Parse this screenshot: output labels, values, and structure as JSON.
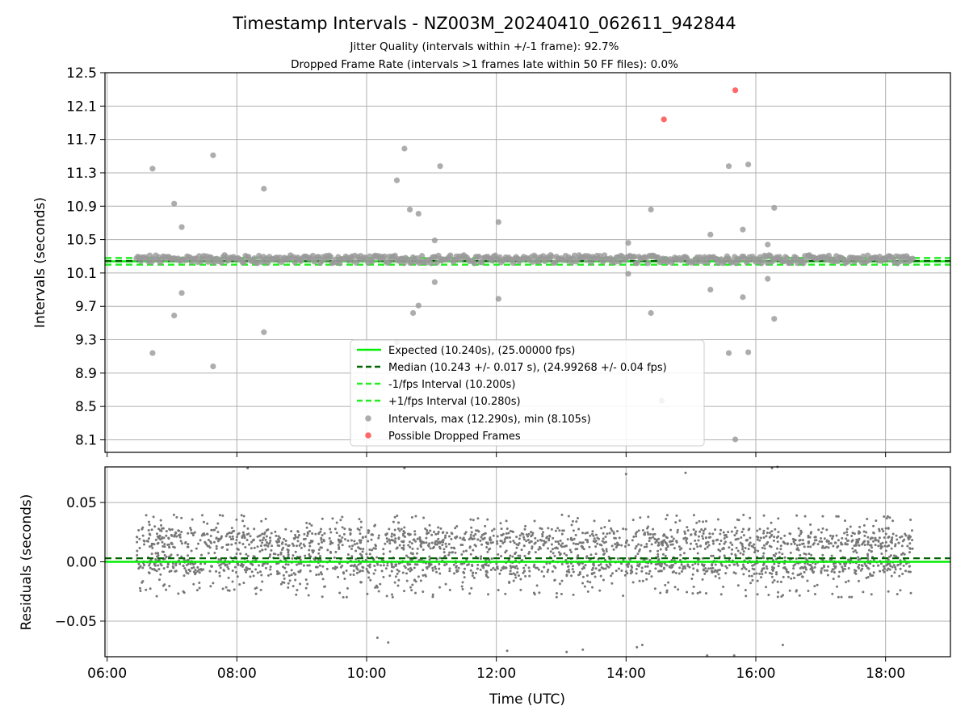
{
  "figure": {
    "title": "Timestamp Intervals - NZ003M_20240410_062611_942844",
    "subtitle_1": "Jitter Quality (intervals within +/-1 frame): 92.7%",
    "subtitle_2": "Dropped Frame Rate (intervals >1 frames late within 50 FF files): 0.0%"
  },
  "colors": {
    "expected": "#00ee00",
    "median": "#006400",
    "fps_band": "#22ee22",
    "intervals": "#999999",
    "dropped": "#ff4444",
    "residuals": "#777777",
    "grid": "#b0b0b0"
  },
  "chart_data": [
    {
      "type": "scatter",
      "ylabel": "Intervals (seconds)",
      "ylim": [
        7.95,
        12.5
      ],
      "y_ticks": [
        8.1,
        8.5,
        8.9,
        9.3,
        9.7,
        10.1,
        10.5,
        10.9,
        11.3,
        11.7,
        12.1,
        12.5
      ],
      "xlim": [
        "05:58",
        "19:00"
      ],
      "x_ticks": [
        "06:00",
        "08:00",
        "10:00",
        "12:00",
        "14:00",
        "16:00",
        "18:00"
      ],
      "grid": true,
      "legend_position": "bottom-center",
      "reference_lines": [
        {
          "name": "Expected (10.240s), (25.00000 fps)",
          "y": 10.24,
          "style": "solid"
        },
        {
          "name": "Median (10.243 +/- 0.017 s), (24.99268 +/- 0.04 fps)",
          "y": 10.243,
          "style": "dashed"
        },
        {
          "name": "-1/fps Interval (10.200s)",
          "y": 10.2,
          "style": "dashed"
        },
        {
          "name": "+1/fps Interval (10.280s)",
          "y": 10.28,
          "style": "dashed"
        }
      ],
      "series": [
        {
          "name": "Intervals, max (12.290s), min (8.105s)",
          "band_range": [
            "06:27",
            "18:25"
          ],
          "band_values": [
            10.23,
            10.26,
            10.28,
            10.3
          ],
          "outliers": [
            [
              "06:42",
              11.35
            ],
            [
              "06:42",
              9.14
            ],
            [
              "07:02",
              10.93
            ],
            [
              "07:02",
              9.59
            ],
            [
              "07:09",
              10.65
            ],
            [
              "07:09",
              9.86
            ],
            [
              "07:38",
              11.51
            ],
            [
              "07:38",
              8.98
            ],
            [
              "08:25",
              11.11
            ],
            [
              "08:25",
              9.39
            ],
            [
              "10:28",
              11.21
            ],
            [
              "10:28",
              9.27
            ],
            [
              "10:35",
              11.59
            ],
            [
              "10:40",
              10.86
            ],
            [
              "10:43",
              9.62
            ],
            [
              "10:48",
              10.81
            ],
            [
              "10:48",
              9.71
            ],
            [
              "11:03",
              10.49
            ],
            [
              "11:03",
              9.99
            ],
            [
              "11:08",
              11.38
            ],
            [
              "12:02",
              10.71
            ],
            [
              "12:02",
              9.79
            ],
            [
              "14:02",
              10.46
            ],
            [
              "14:02",
              10.09
            ],
            [
              "14:23",
              10.86
            ],
            [
              "14:23",
              9.62
            ],
            [
              "15:18",
              10.56
            ],
            [
              "15:18",
              9.9
            ],
            [
              "15:35",
              11.38
            ],
            [
              "15:35",
              9.14
            ],
            [
              "15:48",
              10.62
            ],
            [
              "15:48",
              9.81
            ],
            [
              "15:53",
              11.4
            ],
            [
              "15:53",
              9.15
            ],
            [
              "16:11",
              10.44
            ],
            [
              "16:11",
              10.03
            ],
            [
              "16:17",
              10.88
            ],
            [
              "16:17",
              9.55
            ],
            [
              "14:33",
              8.57
            ],
            [
              "15:41",
              8.105
            ]
          ]
        },
        {
          "name": "Possible Dropped Frames",
          "points": [
            [
              "14:35",
              11.94
            ],
            [
              "15:41",
              12.29
            ]
          ]
        }
      ]
    },
    {
      "type": "scatter",
      "xlabel": "Time (UTC)",
      "ylabel": "Residuals (seconds)",
      "ylim": [
        -0.08,
        0.08
      ],
      "y_ticks": [
        0.05,
        0.0,
        -0.05
      ],
      "y_tick_labels": [
        "0.05",
        "0.00",
        "−0.05"
      ],
      "xlim": [
        "05:58",
        "19:00"
      ],
      "x_ticks": [
        "06:00",
        "08:00",
        "10:00",
        "12:00",
        "14:00",
        "16:00",
        "18:00"
      ],
      "grid": true,
      "reference_lines": [
        {
          "y": 0.0,
          "style": "solid"
        },
        {
          "y": 0.003,
          "style": "dashed"
        }
      ],
      "series": [
        {
          "name": "Residuals",
          "x_range": [
            "06:27",
            "18:25"
          ],
          "core_range": [
            -0.03,
            0.04
          ],
          "count": 2600,
          "outliers": [
            [
              "08:10",
              0.079
            ],
            [
              "10:10",
              -0.064
            ],
            [
              "10:20",
              -0.068
            ],
            [
              "10:35",
              0.079
            ],
            [
              "12:10",
              -0.075
            ],
            [
              "13:05",
              -0.076
            ],
            [
              "13:20",
              -0.074
            ],
            [
              "14:10",
              -0.072
            ],
            [
              "14:15",
              -0.07
            ],
            [
              "14:55",
              0.075
            ],
            [
              "15:15",
              -0.079
            ],
            [
              "15:40",
              -0.079
            ],
            [
              "16:15",
              0.079
            ],
            [
              "16:25",
              -0.07
            ],
            [
              "16:20",
              0.08
            ],
            [
              "14:00",
              0.074
            ]
          ]
        }
      ]
    }
  ]
}
